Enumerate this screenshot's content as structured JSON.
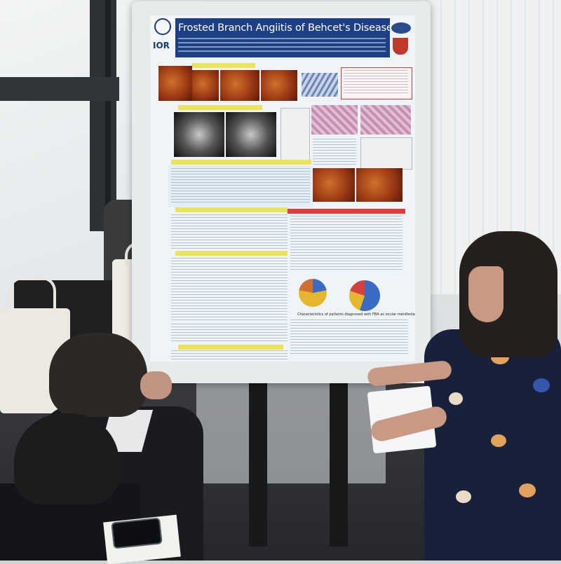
{
  "poster": {
    "title": "Frosted Branch Angiitis of Behcet's Disease",
    "logo_text": "IOR",
    "pie_caption": "Characteristics of patients diagnosed with FBA as ocular manifestation of BD"
  },
  "colors": {
    "title_bar": "#1d3f86",
    "section_header": "#ece35c",
    "conclusion_header": "#e03c3c"
  }
}
